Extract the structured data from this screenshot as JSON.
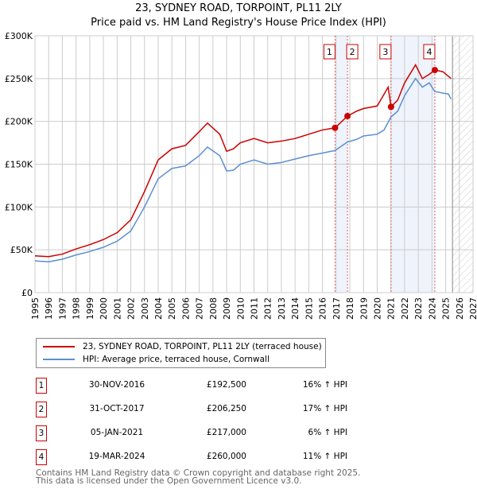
{
  "title": "23, SYDNEY ROAD, TORPOINT, PL11 2LY",
  "subtitle": "Price paid vs. HM Land Registry's House Price Index (HPI)",
  "chart_data": {
    "type": "line",
    "title": "23, SYDNEY ROAD, TORPOINT, PL11 2LY",
    "subtitle": "Price paid vs. HM Land Registry's House Price Index (HPI)",
    "xlim": [
      1995,
      2027
    ],
    "ylim": [
      0,
      300000
    ],
    "x_ticks": [
      "1995",
      "1996",
      "1997",
      "1998",
      "1999",
      "2000",
      "2001",
      "2002",
      "2003",
      "2004",
      "2005",
      "2006",
      "2007",
      "2008",
      "2009",
      "2010",
      "2011",
      "2012",
      "2013",
      "2014",
      "2015",
      "2016",
      "2017",
      "2018",
      "2019",
      "2020",
      "2021",
      "2022",
      "2023",
      "2024",
      "2025",
      "2026",
      "2027"
    ],
    "y_ticks": [
      {
        "v": 0,
        "label": "£0"
      },
      {
        "v": 50000,
        "label": "£50K"
      },
      {
        "v": 100000,
        "label": "£100K"
      },
      {
        "v": 150000,
        "label": "£150K"
      },
      {
        "v": 200000,
        "label": "£200K"
      },
      {
        "v": 250000,
        "label": "£250K"
      },
      {
        "v": 300000,
        "label": "£300K"
      }
    ],
    "grid": true,
    "forecast_start": 2025.5,
    "series": [
      {
        "name": "23, SYDNEY ROAD, TORPOINT, PL11 2LY (terraced house)",
        "color": "#cc0000",
        "x": [
          1995,
          1996,
          1997,
          1998,
          1999,
          2000,
          2001,
          2002,
          2003,
          2004,
          2005,
          2006,
          2007,
          2007.6,
          2008.5,
          2009,
          2009.5,
          2010,
          2011,
          2012,
          2013,
          2014,
          2015,
          2016,
          2016.92,
          2017.83,
          2018.5,
          2019,
          2020,
          2020.8,
          2021.01,
          2021.5,
          2022,
          2022.8,
          2023.3,
          2023.8,
          2024.21,
          2024.8,
          2025.4
        ],
        "y": [
          43000,
          42000,
          45000,
          51000,
          56000,
          62000,
          70000,
          85000,
          118000,
          155000,
          168000,
          172000,
          188000,
          198000,
          185000,
          165000,
          168000,
          175000,
          180000,
          175000,
          177000,
          180000,
          185000,
          190000,
          192500,
          206250,
          212000,
          215000,
          218000,
          240000,
          217000,
          225000,
          245000,
          266000,
          250000,
          255000,
          260000,
          258000,
          250000
        ]
      },
      {
        "name": "HPI: Average price, terraced house, Cornwall",
        "color": "#5b8fd0",
        "x": [
          1995,
          1996,
          1997,
          1998,
          1999,
          2000,
          2001,
          2002,
          2003,
          2004,
          2005,
          2006,
          2007,
          2007.6,
          2008.5,
          2009,
          2009.5,
          2010,
          2011,
          2012,
          2013,
          2014,
          2015,
          2016,
          2016.92,
          2017.83,
          2018.5,
          2019,
          2020,
          2020.5,
          2021,
          2021.5,
          2022,
          2022.8,
          2023.3,
          2023.8,
          2024.2,
          2024.8,
          2025.2,
          2025.4
        ],
        "y": [
          37000,
          36000,
          39000,
          44000,
          48000,
          53000,
          60000,
          72000,
          100000,
          133000,
          145000,
          148000,
          160000,
          170000,
          160000,
          142000,
          143000,
          150000,
          155000,
          150000,
          152000,
          156000,
          160000,
          163000,
          166000,
          176000,
          179000,
          183000,
          185000,
          190000,
          205000,
          212000,
          230000,
          250000,
          240000,
          245000,
          235000,
          233000,
          232000,
          226000
        ]
      }
    ],
    "sales": [
      {
        "n": "1",
        "x": 2016.92,
        "date": "30-NOV-2016",
        "price": "£192,500",
        "value": 192500,
        "hpi": "16% ↑ HPI"
      },
      {
        "n": "2",
        "x": 2017.83,
        "date": "31-OCT-2017",
        "price": "£206,250",
        "value": 206250,
        "hpi": "17% ↑ HPI"
      },
      {
        "n": "3",
        "x": 2021.01,
        "date": "05-JAN-2021",
        "price": "£217,000",
        "value": 217000,
        "hpi": "6% ↑ HPI"
      },
      {
        "n": "4",
        "x": 2024.21,
        "date": "19-MAR-2024",
        "price": "£260,000",
        "value": 260000,
        "hpi": "11% ↑ HPI"
      }
    ],
    "legend_position": "below"
  },
  "legend": {
    "property": "23, SYDNEY ROAD, TORPOINT, PL11 2LY (terraced house)",
    "hpi": "HPI: Average price, terraced house, Cornwall"
  },
  "footer": {
    "line1": "Contains HM Land Registry data © Crown copyright and database right 2025.",
    "line2": "This data is licensed under the Open Government Licence v3.0."
  }
}
